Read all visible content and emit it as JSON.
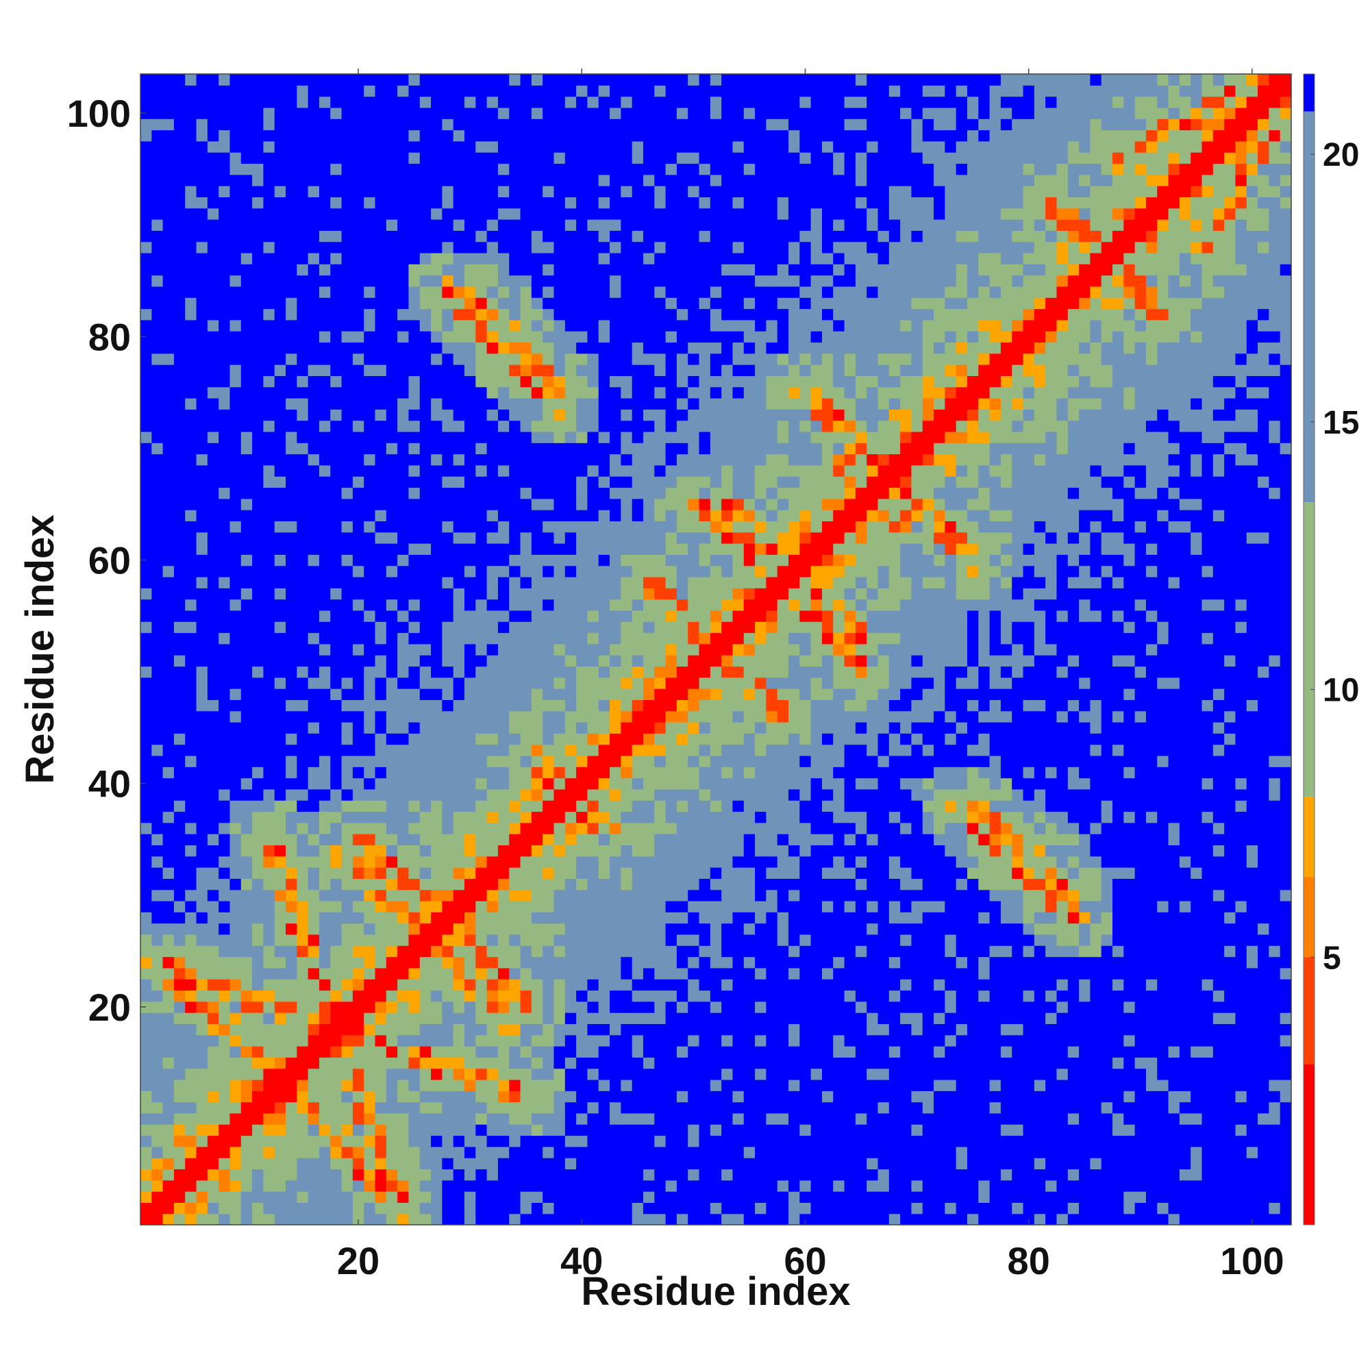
{
  "chart_data": {
    "type": "heatmap",
    "title": "",
    "xlabel": "Residue index",
    "ylabel": "Residue index",
    "xlim": [
      1,
      103
    ],
    "ylim": [
      1,
      103
    ],
    "x_ticks": [
      20,
      40,
      60,
      80,
      100
    ],
    "y_ticks": [
      20,
      40,
      60,
      80,
      100
    ],
    "grid": false,
    "colorbar": {
      "ticks": [
        5,
        10,
        15,
        20
      ],
      "range": [
        0,
        21.5
      ],
      "colors": [
        "#ff0000",
        "#ff4000",
        "#ff8000",
        "#ffa500",
        "#96b982",
        "#6f93b9",
        "#0000ff"
      ],
      "boundaries": [
        0,
        3,
        5,
        6.5,
        8,
        13.5,
        20.8,
        21.5
      ]
    },
    "description": "Symmetric residue-residue distance map for 103 residues; red band along the diagonal (distance < 4), orange contact arms off-diagonal, blue where distance > 20.",
    "contact_arms": [
      {
        "from": [
          1,
          24
        ],
        "to": [
          35,
          12
        ]
      },
      {
        "from": [
          3,
          24
        ],
        "to": [
          23,
          3
        ]
      },
      {
        "from": [
          20,
          35
        ],
        "to": [
          35,
          20
        ]
      },
      {
        "from": [
          25,
          28
        ],
        "to": [
          34,
          18
        ]
      },
      {
        "from": [
          36,
          41
        ],
        "to": [
          43,
          36
        ]
      },
      {
        "from": [
          47,
          57
        ],
        "to": [
          58,
          46
        ]
      },
      {
        "from": [
          53,
          65
        ],
        "to": [
          65,
          53
        ]
      },
      {
        "from": [
          56,
          60
        ],
        "to": [
          65,
          50
        ]
      },
      {
        "from": [
          28,
          84
        ],
        "to": [
          38,
          74
        ]
      },
      {
        "from": [
          60,
          75
        ],
        "to": [
          75,
          60
        ]
      },
      {
        "from": [
          63,
          69
        ],
        "to": [
          69,
          63
        ]
      },
      {
        "from": [
          82,
          92
        ],
        "to": [
          92,
          82
        ]
      },
      {
        "from": [
          88,
          96
        ],
        "to": [
          101,
          103
        ]
      },
      {
        "from": [
          75,
          38
        ],
        "to": [
          84,
          30
        ]
      }
    ]
  }
}
